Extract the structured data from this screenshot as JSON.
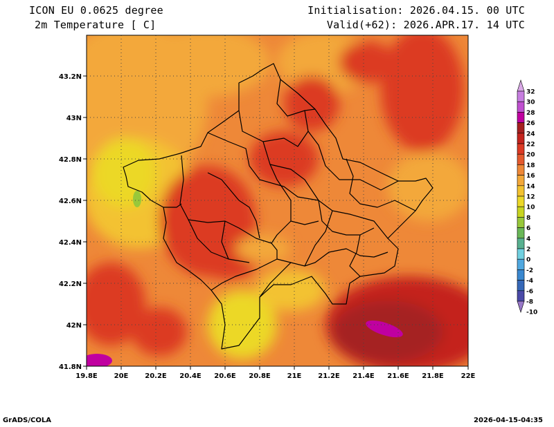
{
  "header": {
    "model": "ICON EU 0.0625 degree",
    "variable": "2m Temperature [ C]",
    "init": "Initialisation: 2026.04.15. 00 UTC",
    "valid": "Valid(+62): 2026.APR.17. 14 UTC"
  },
  "axes": {
    "x_ticks": [
      "19.8E",
      "20E",
      "20.2E",
      "20.4E",
      "20.6E",
      "20.8E",
      "21E",
      "21.2E",
      "21.4E",
      "21.6E",
      "21.8E",
      "22E"
    ],
    "y_ticks": [
      "43.2N",
      "43N",
      "42.8N",
      "42.6N",
      "42.4N",
      "42.2N",
      "42N",
      "41.8N"
    ]
  },
  "colorbar": {
    "labels": [
      "32",
      "30",
      "28",
      "26",
      "24",
      "22",
      "20",
      "18",
      "16",
      "14",
      "12",
      "10",
      "8",
      "6",
      "4",
      "2",
      "0",
      "-2",
      "-4",
      "-6",
      "-8",
      "-10"
    ],
    "colors": [
      "#d9a8e6",
      "#c77ee0",
      "#c050d0",
      "#c000a0",
      "#a52020",
      "#c4241e",
      "#dc3a24",
      "#e45a2e",
      "#ee8838",
      "#f3a83a",
      "#f3c230",
      "#ecd828",
      "#c8d420",
      "#98c83a",
      "#6ab858",
      "#58b090",
      "#70d0e0",
      "#50a8e0",
      "#3a88d0",
      "#3668b8",
      "#4a4aa8",
      "#9878c8"
    ]
  },
  "footer": {
    "left": "GrADS/COLA",
    "right": "2026-04-15-04:35"
  },
  "map_legend_colors": {
    "yellow": "#ecd828",
    "light_orange": "#f3a83a",
    "orange": "#ee8838",
    "dark_orange": "#e45a2e",
    "red": "#dc3a24",
    "dark_red": "#c4241e",
    "brown": "#a52020",
    "magenta": "#c000a0"
  }
}
